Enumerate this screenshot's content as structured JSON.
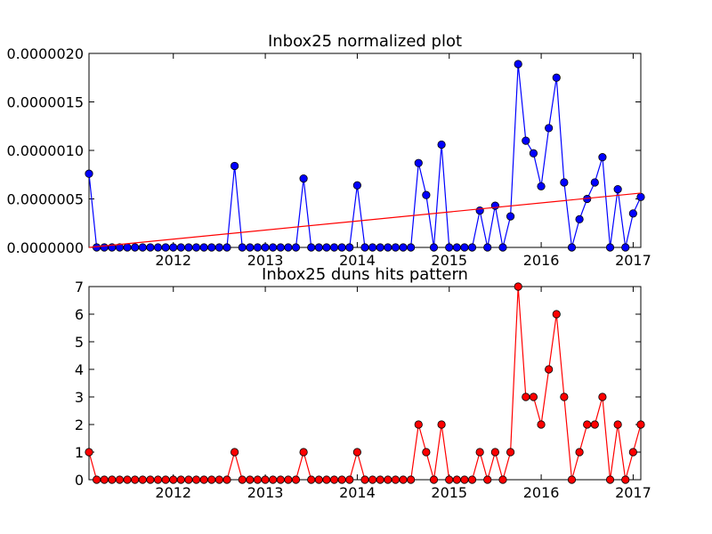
{
  "chart_data": [
    {
      "type": "line",
      "title": "Inbox25 normalized plot",
      "xlabel": "",
      "ylabel": "",
      "xlim": [
        2011.083,
        2017.083
      ],
      "ylim": [
        0,
        2e-06
      ],
      "x_ticks": [
        "2012",
        "2013",
        "2014",
        "2015",
        "2016",
        "2017"
      ],
      "y_ticks": [
        "0.0000000",
        "0.0000005",
        "0.0000010",
        "0.0000015",
        "0.0000020"
      ],
      "grid": false,
      "colors": {
        "series": "#0000ff",
        "trend": "#ff0000"
      },
      "series": [
        {
          "marker": "circle",
          "x_start": 2011.083,
          "x_step": 0.08333,
          "values": [
            7.6e-07,
            0,
            0,
            0,
            0,
            0,
            0,
            0,
            0,
            0,
            0,
            0,
            0,
            0,
            0,
            0,
            0,
            0,
            0,
            8.4e-07,
            0,
            0,
            0,
            0,
            0,
            0,
            0,
            0,
            7.1e-07,
            0,
            0,
            0,
            0,
            0,
            0,
            6.4e-07,
            0,
            0,
            0,
            0,
            0,
            0,
            0,
            8.7e-07,
            5.4e-07,
            0,
            1.06e-06,
            0,
            0,
            0,
            0,
            3.8e-07,
            0,
            4.3e-07,
            0,
            3.2e-07,
            1.89e-06,
            1.1e-06,
            9.7e-07,
            6.3e-07,
            1.23e-06,
            1.75e-06,
            6.7e-07,
            0,
            2.9e-07,
            5e-07,
            6.7e-07,
            9.3e-07,
            0,
            6e-07,
            0,
            3.5e-07,
            5.2e-07
          ]
        },
        {
          "marker": "none",
          "x": [
            2011.083,
            2017.083
          ],
          "values": [
            0,
            5.6e-07
          ]
        }
      ]
    },
    {
      "type": "line",
      "title": "Inbox25 duns hits pattern",
      "xlabel": "",
      "ylabel": "",
      "xlim": [
        2011.083,
        2017.083
      ],
      "ylim": [
        0,
        7
      ],
      "x_ticks": [
        "2012",
        "2013",
        "2014",
        "2015",
        "2016",
        "2017"
      ],
      "y_ticks": [
        "0",
        "1",
        "2",
        "3",
        "4",
        "5",
        "6",
        "7"
      ],
      "grid": false,
      "colors": {
        "series": "#ff0000"
      },
      "series": [
        {
          "marker": "circle",
          "x_start": 2011.083,
          "x_step": 0.08333,
          "values": [
            1,
            0,
            0,
            0,
            0,
            0,
            0,
            0,
            0,
            0,
            0,
            0,
            0,
            0,
            0,
            0,
            0,
            0,
            0,
            1,
            0,
            0,
            0,
            0,
            0,
            0,
            0,
            0,
            1,
            0,
            0,
            0,
            0,
            0,
            0,
            1,
            0,
            0,
            0,
            0,
            0,
            0,
            0,
            2,
            1,
            0,
            2,
            0,
            0,
            0,
            0,
            1,
            0,
            1,
            0,
            1,
            7,
            3,
            3,
            2,
            4,
            6,
            3,
            0,
            1,
            2,
            2,
            3,
            0,
            2,
            0,
            1,
            2
          ]
        }
      ]
    }
  ]
}
